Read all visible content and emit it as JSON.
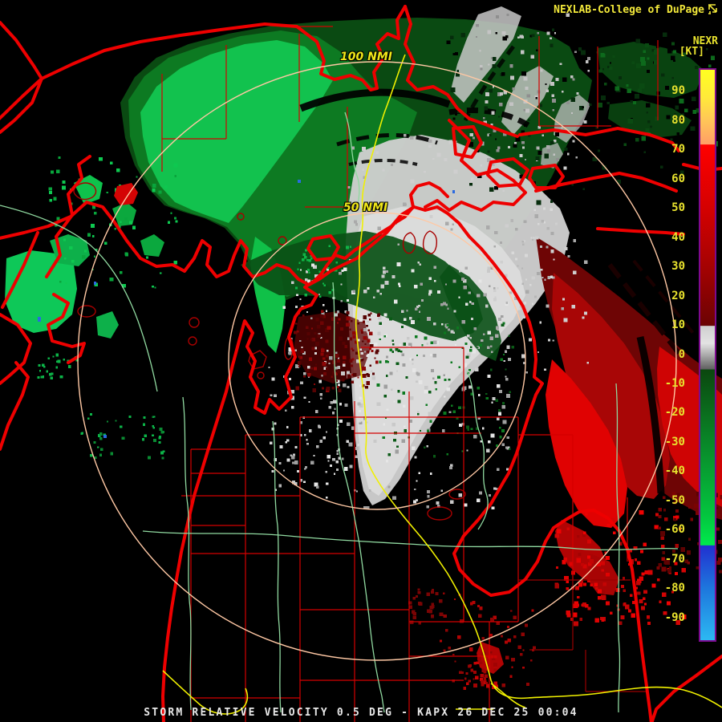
{
  "header": {
    "brand": "NEXLAB-College of DuPage",
    "brand_color": "#f2e83a",
    "brand_icon": "flag-arrow-icon"
  },
  "colorbar": {
    "product": "NEXR",
    "units": "[KT]",
    "ticks": [
      90,
      80,
      70,
      60,
      50,
      40,
      30,
      20,
      10,
      0,
      -10,
      -20,
      -30,
      -40,
      -50,
      -60,
      -70,
      -80,
      -90
    ],
    "value_max": 97.5,
    "value_min": -97.5,
    "border_color": "#7d0a8e",
    "label_color": "#e8e22e",
    "stops": [
      [
        97.5,
        "#ffff20"
      ],
      [
        88,
        "#ffe93a"
      ],
      [
        80,
        "#ffc558"
      ],
      [
        72,
        "#ff9e66"
      ],
      [
        71.9,
        "#ff0000"
      ],
      [
        50,
        "#d40101"
      ],
      [
        30,
        "#a40202"
      ],
      [
        11,
        "#6e0303"
      ],
      [
        10,
        "#680404"
      ],
      [
        9.9,
        "#cfcfcf"
      ],
      [
        4,
        "#e3e3e3"
      ],
      [
        0,
        "#ababab"
      ],
      [
        -4.9,
        "#5f5f5f"
      ],
      [
        -5,
        "#0b470f"
      ],
      [
        -20,
        "#0a6e1e"
      ],
      [
        -40,
        "#07a032"
      ],
      [
        -55,
        "#03c63f"
      ],
      [
        -65,
        "#00ea4c"
      ],
      [
        -65.2,
        "#2131d0"
      ],
      [
        -80,
        "#1e78dd"
      ],
      [
        -97.5,
        "#2cb8f2"
      ]
    ]
  },
  "rings": {
    "outer_label": "100 NMI",
    "inner_label": "50 NMI",
    "ring_color": "#ffc8a4",
    "ring_label_color": "#f0e818"
  },
  "status_bar": {
    "text": "STORM RELATIVE VELOCITY 0.5 DEG - KAPX 26 DEC 25 00:04",
    "color": "#e8e8e8"
  },
  "map_legend_colors": {
    "inbound_velocity_green": "#0dc24e",
    "outbound_velocity_red": "#d40404",
    "near_zero_gray": "#cfcfcf",
    "shoreline_red": "#ee0000",
    "county_line_red": "#d40000",
    "primary_road_yellow": "#f0f000",
    "secondary_road_green": "#90d9a0"
  }
}
